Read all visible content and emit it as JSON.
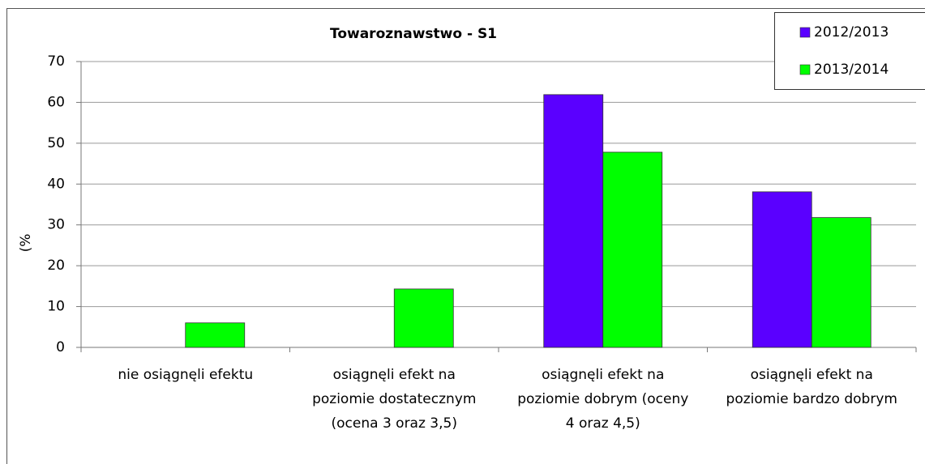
{
  "chart_data": {
    "type": "bar",
    "title": "Towaroznawstwo - S1",
    "y_label": "(%",
    "categories": [
      "nie osiągnęli efektu",
      "osiągnęli efekt na\npoziomie dostatecznym\n(ocena 3 oraz 3,5)",
      "osiągnęli efekt na\npoziomie dobrym (oceny\n4 oraz 4,5)",
      "osiągnęli efekt na\npoziomie bardzo dobrym"
    ],
    "series": [
      {
        "name": "2012/2013",
        "color": "#5a00ff",
        "values": [
          0,
          0,
          61.9,
          38.1
        ]
      },
      {
        "name": "2013/2014",
        "color": "#00ff00",
        "values": [
          6,
          14.3,
          47.8,
          31.8
        ]
      }
    ],
    "ylim": [
      0,
      70
    ],
    "yticks": [
      0,
      10,
      20,
      30,
      40,
      50,
      60,
      70
    ],
    "grid": true,
    "legend": "top-right"
  }
}
